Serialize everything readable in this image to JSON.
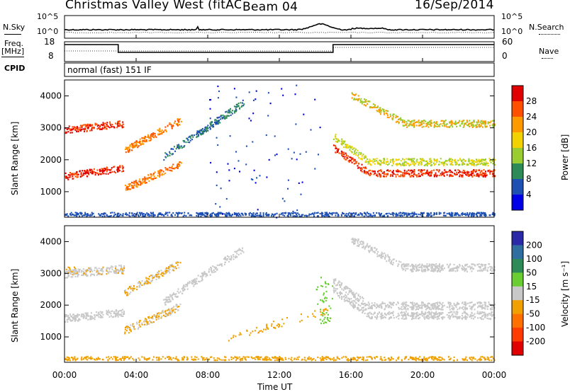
{
  "header": {
    "title": "Christmas Valley West (fitACF)",
    "beam": "Beam 04",
    "date": "16/Sep/2014"
  },
  "top_panels": {
    "nsky_label": "N.Sky",
    "nsky_ticks": [
      "10^5",
      "10^0"
    ],
    "nsearch_label": "N.Search",
    "freq_label_1": "Freq.",
    "freq_label_2": "[MHz]",
    "freq_ticks": [
      "18",
      "8"
    ],
    "nave_ticks": [
      "60",
      "0"
    ],
    "nave_label": "Nave",
    "cpid_label": "CPID",
    "cpid_value": "normal (fast) 151 IF"
  },
  "chart_data": [
    {
      "type": "heatmap",
      "name": "power",
      "ylabel": "Slant Range [km]",
      "yticks": [
        "4000",
        "3000",
        "2000",
        "1000"
      ],
      "y_values": [
        4000,
        3000,
        2000,
        1000
      ],
      "ylim": [
        200,
        4500
      ],
      "xlim": [
        0,
        24
      ],
      "colorbar_label": "Power [dB]",
      "colorbar_ticks": [
        "28",
        "24",
        "20",
        "16",
        "12",
        "8",
        "4"
      ],
      "colorbar_colors": [
        "#e00000",
        "#ff5000",
        "#ff9900",
        "#f2d200",
        "#9acd32",
        "#2e8b57",
        "#1e50b4",
        "#0000e6"
      ]
    },
    {
      "type": "heatmap",
      "name": "velocity",
      "ylabel": "Slant Range [km]",
      "yticks": [
        "4000",
        "3000",
        "2000",
        "1000"
      ],
      "y_values": [
        4000,
        3000,
        2000,
        1000
      ],
      "ylim": [
        200,
        4500
      ],
      "xlim": [
        0,
        24
      ],
      "colorbar_label": "Velocity [m s⁻¹]",
      "colorbar_ticks": [
        "200",
        "100",
        "50",
        "15",
        "-15",
        "-50",
        "-100",
        "-200"
      ],
      "colorbar_colors": [
        "#2a2aa8",
        "#2f6e9e",
        "#2e8b57",
        "#6acd32",
        "#c8c8c8",
        "#f0a000",
        "#ff7000",
        "#ff3c00",
        "#e00000"
      ]
    }
  ],
  "x_axis": {
    "ticks": [
      "00:00",
      "04:00",
      "08:00",
      "12:00",
      "16:00",
      "20:00",
      "00:00"
    ],
    "hours": [
      0,
      4,
      8,
      12,
      16,
      20,
      24
    ],
    "label": "Time UT"
  },
  "colors": {
    "power_high": "#e00000",
    "power_mid": "#ff9900",
    "power_low": "#0000e6",
    "velocity_ground": "#c8c8c8",
    "velocity_neg": "#f0a000",
    "velocity_pos": "#2e8b57"
  }
}
